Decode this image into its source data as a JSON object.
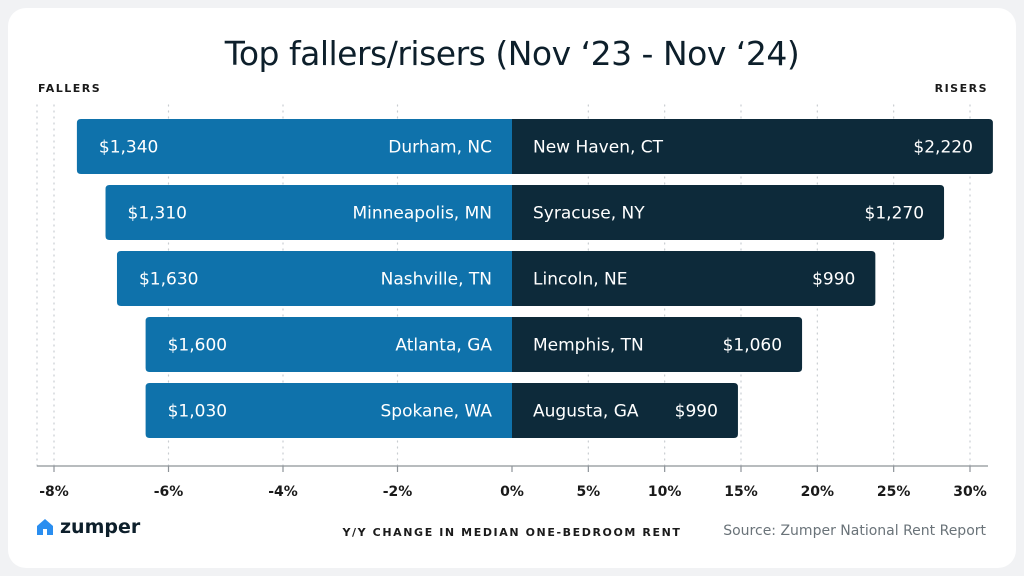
{
  "chart_data": {
    "type": "bar",
    "title": "Top fallers/risers (Nov ‘23 - Nov ‘24)",
    "left_label": "FALLERS",
    "right_label": "RISERS",
    "xlabel": "Y/Y CHANGE IN MEDIAN ONE-BEDROOM RENT",
    "source": "Source: Zumper National Rent Report",
    "brand": "zumper",
    "x_ticks_negative": [
      -8,
      -6,
      -4,
      -2,
      0
    ],
    "x_ticks_positive": [
      0,
      5,
      10,
      15,
      20,
      25,
      30
    ],
    "x_tick_labels_negative": [
      "-8%",
      "-6%",
      "-4%",
      "-2%",
      "0%"
    ],
    "x_tick_labels_positive": [
      "5%",
      "10%",
      "15%",
      "20%",
      "25%",
      "30%"
    ],
    "xlim_negative": [
      -8,
      0
    ],
    "xlim_positive": [
      0,
      30
    ],
    "fallers": [
      {
        "city": "Durham, NC",
        "rent": "$1,340",
        "change": -7.6
      },
      {
        "city": "Minneapolis, MN",
        "rent": "$1,310",
        "change": -7.1
      },
      {
        "city": "Nashville, TN",
        "rent": "$1,630",
        "change": -6.9
      },
      {
        "city": "Atlanta, GA",
        "rent": "$1,600",
        "change": -6.4
      },
      {
        "city": "Spokane, WA",
        "rent": "$1,030",
        "change": -6.4
      }
    ],
    "risers": [
      {
        "city": "New Haven, CT",
        "rent": "$2,220",
        "change": 31.5
      },
      {
        "city": "Syracuse, NY",
        "rent": "$1,270",
        "change": 28.3
      },
      {
        "city": "Lincoln, NE",
        "rent": "$990",
        "change": 23.8
      },
      {
        "city": "Memphis, TN",
        "rent": "$1,060",
        "change": 19.0
      },
      {
        "city": "Augusta, GA",
        "rent": "$990",
        "change": 14.8
      }
    ],
    "colors": {
      "fallers": "#0f72ab",
      "risers": "#0d2a3a",
      "grid": "#c9cdd1",
      "axis": "#8d9398",
      "brand": "#2a8ef0"
    }
  }
}
